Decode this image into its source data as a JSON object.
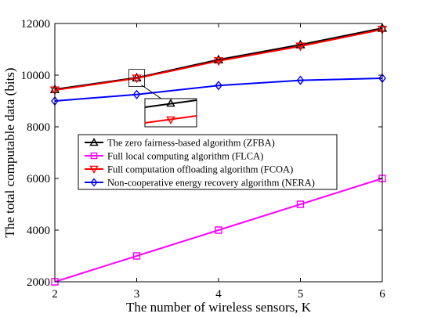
{
  "chart_data": {
    "type": "line",
    "title": "",
    "xlabel": "The number of wireless sensors, K",
    "ylabel": "The total computable data (bits)",
    "x": [
      2,
      3,
      4,
      5,
      6
    ],
    "xlim": [
      2,
      6
    ],
    "ylim": [
      2000,
      12000
    ],
    "xticks": [
      "2",
      "3",
      "4",
      "5",
      "6"
    ],
    "yticks": [
      "2000",
      "4000",
      "6000",
      "8000",
      "10000",
      "12000"
    ],
    "grid": false,
    "legend_position": "center-left",
    "series": [
      {
        "name": "The zero fairness-based algorithm (ZFBA)",
        "values": [
          9450,
          9900,
          10600,
          11180,
          11820
        ],
        "color": "#000000",
        "marker": "triangle-up"
      },
      {
        "name": "Full local computing algorithm (FLCA)",
        "values": [
          2000,
          3000,
          4000,
          5000,
          6000
        ],
        "color": "#ff00ff",
        "marker": "square"
      },
      {
        "name": "Full computation offloading algorithm (FCOA)",
        "values": [
          9420,
          9880,
          10550,
          11120,
          11770
        ],
        "color": "#ff0000",
        "marker": "triangle-down"
      },
      {
        "name": "Non-cooperative energy recovery algorithm (NERA)",
        "values": [
          9000,
          9250,
          9600,
          9800,
          9880
        ],
        "color": "#0000ff",
        "marker": "diamond"
      }
    ],
    "inset": {
      "zoom_x": 3,
      "zoom_of": [
        "ZFBA",
        "FCOA"
      ]
    }
  }
}
